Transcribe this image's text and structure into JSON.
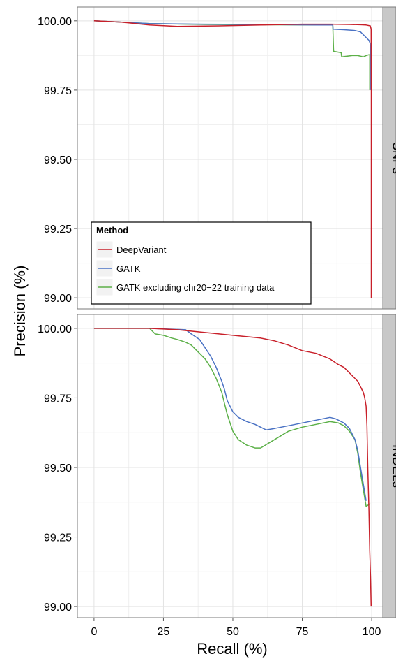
{
  "chart_data": {
    "type": "line",
    "xlabel": "Recall (%)",
    "ylabel": "Precision (%)",
    "xlim": [
      -6,
      104
    ],
    "ylim": [
      98.96,
      100.05
    ],
    "x_ticks": [
      "0",
      "25",
      "50",
      "75",
      "100"
    ],
    "y_ticks": [
      "100.00",
      "99.75",
      "99.50",
      "99.25",
      "99.00"
    ],
    "grid": true,
    "legend": {
      "title": "Method",
      "position": "inside-bottom-left of top panel",
      "entries": [
        "DeepVariant",
        "GATK",
        "GATK excluding chr20−22 training data"
      ]
    },
    "colors": {
      "DeepVariant": "#c8202a",
      "GATK": "#4a72c4",
      "GATK excluding chr20−22 training data": "#5cb048"
    },
    "panels": [
      {
        "label": "SNPs",
        "series": [
          {
            "name": "DeepVariant",
            "x": [
              0,
              10,
              20,
              30,
              45,
              60,
              75,
              85,
              92,
              96,
              98,
              99.5,
              99.8,
              99.85,
              99.85
            ],
            "y": [
              100.0,
              99.995,
              99.985,
              99.98,
              99.982,
              99.985,
              99.988,
              99.988,
              99.987,
              99.986,
              99.985,
              99.982,
              99.97,
              99.75,
              99.0
            ]
          },
          {
            "name": "GATK",
            "x": [
              0,
              10,
              20,
              40,
              60,
              80,
              86,
              86.1,
              90,
              94,
              96,
              97,
              98,
              99,
              99.4,
              99.5,
              99.5
            ],
            "y": [
              100.0,
              99.995,
              99.99,
              99.988,
              99.987,
              99.985,
              99.985,
              99.97,
              99.968,
              99.965,
              99.96,
              99.95,
              99.94,
              99.93,
              99.92,
              99.91,
              99.75
            ]
          },
          {
            "name": "GATK excluding chr20−22 training data",
            "x": [
              0,
              10,
              20,
              40,
              60,
              80,
              86,
              86.3,
              89,
              89.2,
              93,
              95,
              97,
              98,
              99,
              99.3,
              99.3
            ],
            "y": [
              100.0,
              99.995,
              99.99,
              99.987,
              99.986,
              99.985,
              99.985,
              99.89,
              99.885,
              99.87,
              99.875,
              99.875,
              99.87,
              99.875,
              99.878,
              99.878,
              99.75
            ]
          }
        ]
      },
      {
        "label": "INDELs",
        "series": [
          {
            "name": "DeepVariant",
            "x": [
              0,
              10,
              20,
              30,
              40,
              50,
              60,
              65,
              70,
              75,
              80,
              85,
              88,
              90,
              92,
              94,
              95,
              96,
              97,
              97.5,
              98,
              98.3,
              98.6,
              99,
              99.3,
              99.6,
              99.8
            ],
            "y": [
              100.0,
              100.0,
              100.0,
              99.995,
              99.985,
              99.975,
              99.965,
              99.955,
              99.94,
              99.92,
              99.91,
              99.89,
              99.87,
              99.86,
              99.84,
              99.82,
              99.81,
              99.79,
              99.77,
              99.75,
              99.72,
              99.65,
              99.5,
              99.35,
              99.2,
              99.1,
              99.0
            ]
          },
          {
            "name": "GATK",
            "x": [
              0,
              20,
              33,
              35,
              38,
              40,
              42,
              44,
              46,
              47,
              48,
              50,
              52,
              55,
              58,
              60,
              62,
              65,
              70,
              75,
              80,
              85,
              87,
              90,
              92,
              94,
              95,
              96,
              97,
              98
            ],
            "y": [
              100.0,
              100.0,
              99.995,
              99.98,
              99.96,
              99.93,
              99.9,
              99.86,
              99.81,
              99.78,
              99.74,
              99.7,
              99.68,
              99.665,
              99.655,
              99.645,
              99.635,
              99.64,
              99.65,
              99.66,
              99.67,
              99.68,
              99.675,
              99.66,
              99.64,
              99.6,
              99.56,
              99.5,
              99.44,
              99.38
            ]
          },
          {
            "name": "GATK excluding chr20−22 training data",
            "x": [
              0,
              20,
              22,
              25,
              28,
              30,
              33,
              35,
              38,
              40,
              42,
              44,
              46,
              47,
              48,
              50,
              52,
              55,
              58,
              60,
              65,
              70,
              75,
              80,
              85,
              88,
              90,
              92,
              94,
              95,
              96,
              97,
              98,
              99.5
            ],
            "y": [
              100.0,
              100.0,
              99.98,
              99.975,
              99.965,
              99.96,
              99.95,
              99.94,
              99.91,
              99.89,
              99.86,
              99.82,
              99.77,
              99.73,
              99.69,
              99.63,
              99.6,
              99.58,
              99.57,
              99.57,
              99.6,
              99.63,
              99.645,
              99.655,
              99.665,
              99.66,
              99.65,
              99.63,
              99.6,
              99.55,
              99.48,
              99.42,
              99.36,
              99.37
            ]
          }
        ]
      }
    ]
  }
}
